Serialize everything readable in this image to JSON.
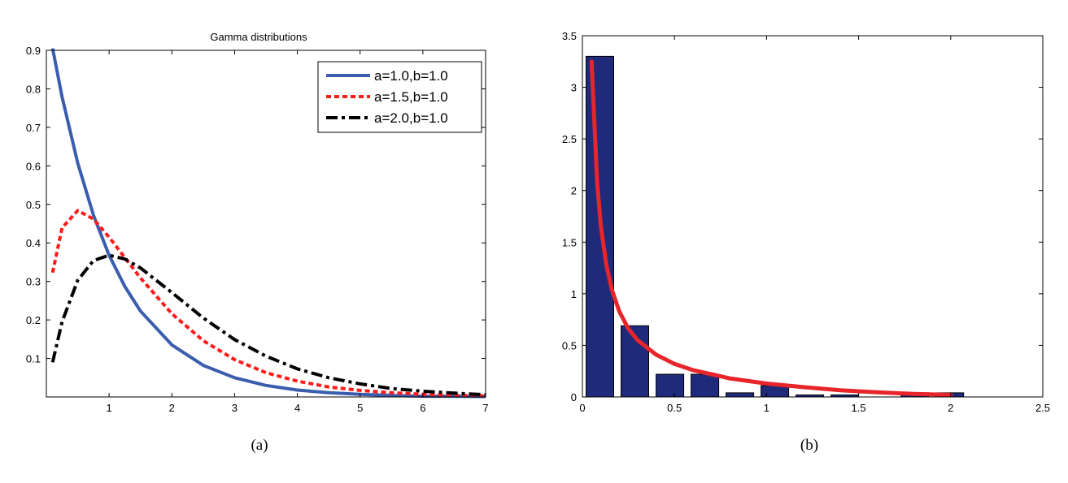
{
  "chart_data": [
    {
      "type": "line",
      "title": "Gamma distributions",
      "caption": "(a)",
      "xlabel": "",
      "ylabel": "",
      "xlim": [
        0,
        7
      ],
      "ylim": [
        0,
        0.9
      ],
      "xticks": [
        1,
        2,
        3,
        4,
        5,
        6,
        7
      ],
      "yticks": [
        0.1,
        0.2,
        0.3,
        0.4,
        0.5,
        0.6,
        0.7,
        0.8,
        0.9
      ],
      "legend_position": "top-right",
      "x": [
        0.1,
        0.25,
        0.5,
        0.75,
        1.0,
        1.25,
        1.5,
        2.0,
        2.5,
        3.0,
        3.5,
        4.0,
        4.5,
        5.0,
        5.5,
        6.0,
        6.5,
        7.0
      ],
      "series": [
        {
          "name": "a=1.0,b=1.0",
          "color": "#3a5dae",
          "style": "solid",
          "values": [
            0.905,
            0.779,
            0.607,
            0.472,
            0.368,
            0.287,
            0.223,
            0.135,
            0.082,
            0.05,
            0.03,
            0.018,
            0.011,
            0.007,
            0.004,
            0.002,
            0.002,
            0.001
          ]
        },
        {
          "name": "a=1.5,b=1.0",
          "color": "#ff1a1a",
          "style": "dotted",
          "values": [
            0.323,
            0.439,
            0.484,
            0.462,
            0.415,
            0.362,
            0.309,
            0.216,
            0.146,
            0.097,
            0.063,
            0.041,
            0.026,
            0.017,
            0.011,
            0.007,
            0.004,
            0.003
          ]
        },
        {
          "name": "a=2.0,b=1.0",
          "color": "#000000",
          "style": "dashdot",
          "values": [
            0.09,
            0.195,
            0.303,
            0.354,
            0.368,
            0.358,
            0.335,
            0.271,
            0.205,
            0.149,
            0.106,
            0.073,
            0.05,
            0.034,
            0.022,
            0.015,
            0.01,
            0.006
          ]
        }
      ]
    },
    {
      "type": "bar",
      "title": "",
      "caption": "(b)",
      "xlabel": "",
      "ylabel": "",
      "xlim": [
        0,
        2.5
      ],
      "ylim": [
        0,
        3.5
      ],
      "xticks": [
        "0",
        "0.5",
        "1",
        "1.5",
        "2",
        "2.5"
      ],
      "yticks": [
        "0",
        "0.5",
        "1",
        "1.5",
        "2",
        "2.5",
        "3",
        "3.5"
      ],
      "bar_color": "#1f2a7a",
      "bar_width": 0.15,
      "bar_centers": [
        0.095,
        0.285,
        0.475,
        0.665,
        0.855,
        1.045,
        1.235,
        1.425,
        1.615,
        1.805,
        1.995
      ],
      "values": [
        3.3,
        0.69,
        0.22,
        0.22,
        0.04,
        0.11,
        0.02,
        0.02,
        0.0,
        0.04,
        0.04
      ],
      "curve": {
        "color": "#e8252a",
        "x": [
          0.05,
          0.08,
          0.1,
          0.13,
          0.16,
          0.2,
          0.25,
          0.3,
          0.4,
          0.5,
          0.6,
          0.7,
          0.8,
          1.0,
          1.2,
          1.4,
          1.6,
          1.8,
          2.0
        ],
        "values": [
          3.25,
          2.08,
          1.66,
          1.28,
          1.04,
          0.83,
          0.66,
          0.55,
          0.41,
          0.32,
          0.26,
          0.22,
          0.18,
          0.13,
          0.095,
          0.065,
          0.045,
          0.03,
          0.02
        ]
      }
    }
  ]
}
